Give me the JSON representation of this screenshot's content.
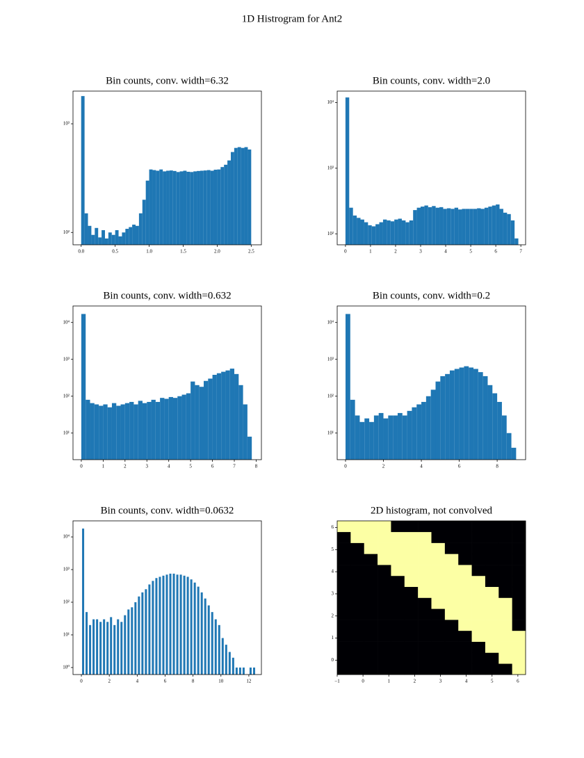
{
  "title": "1D Histrogram for Ant2",
  "chart_data": [
    {
      "type": "histogram",
      "title": "Bin counts, conv. width=6.32",
      "color": "#1f77b4",
      "log_y": true,
      "bins": [
        0,
        0.05,
        0.1,
        0.15,
        0.2,
        0.25,
        0.3,
        0.35,
        0.4,
        0.45,
        0.5,
        0.55,
        0.6,
        0.65,
        0.7,
        0.75,
        0.8,
        0.85,
        0.9,
        0.95,
        1.0,
        1.05,
        1.1,
        1.15,
        1.2,
        1.25,
        1.3,
        1.35,
        1.4,
        1.45,
        1.5,
        1.55,
        1.6,
        1.65,
        1.7,
        1.75,
        1.8,
        1.85,
        1.9,
        1.95,
        2.0,
        2.05,
        2.1,
        2.15,
        2.2,
        2.25,
        2.3,
        2.35,
        2.4,
        2.45,
        2.5
      ],
      "values": [
        1800,
        150,
        115,
        95,
        110,
        90,
        105,
        88,
        100,
        95,
        105,
        92,
        100,
        108,
        112,
        118,
        115,
        150,
        200,
        300,
        380,
        375,
        370,
        380,
        365,
        370,
        372,
        368,
        360,
        365,
        370,
        362,
        360,
        365,
        368,
        370,
        372,
        375,
        370,
        378,
        380,
        400,
        420,
        460,
        550,
        600,
        610,
        600,
        610,
        580
      ],
      "xlim": [
        -0.12,
        2.65
      ],
      "ylim": [
        77,
        2000
      ],
      "xticks": [
        {
          "value": 0,
          "label": "0.0"
        },
        0.5,
        {
          "value": 1,
          "label": "1.0"
        },
        1.5,
        {
          "value": 2,
          "label": "2.0"
        },
        2.5
      ],
      "yticks": [
        {
          "value": 100,
          "label": "10²"
        },
        {
          "value": 1000,
          "label": "10³"
        }
      ]
    },
    {
      "type": "histogram",
      "title": "Bin counts, conv. width=2.0",
      "color": "#1f77b4",
      "log_y": true,
      "bins": [
        0,
        0.15,
        0.3,
        0.45,
        0.6,
        0.75,
        0.9,
        1.05,
        1.2,
        1.35,
        1.5,
        1.65,
        1.8,
        1.95,
        2.1,
        2.25,
        2.4,
        2.55,
        2.7,
        2.85,
        3.0,
        3.15,
        3.3,
        3.45,
        3.6,
        3.75,
        3.9,
        4.05,
        4.2,
        4.35,
        4.5,
        4.65,
        4.8,
        4.95,
        5.1,
        5.25,
        5.4,
        5.55,
        5.7,
        5.85,
        6.0,
        6.15,
        6.3,
        6.45,
        6.6,
        6.75,
        6.9
      ],
      "values": [
        12000,
        250,
        190,
        175,
        165,
        150,
        135,
        130,
        140,
        150,
        165,
        160,
        155,
        165,
        170,
        160,
        150,
        160,
        230,
        250,
        260,
        270,
        255,
        265,
        250,
        255,
        240,
        245,
        240,
        250,
        235,
        240,
        240,
        240,
        240,
        245,
        240,
        250,
        260,
        270,
        280,
        240,
        210,
        200,
        160,
        85
      ],
      "xlim": [
        -0.33,
        7.19
      ],
      "ylim": [
        68,
        15000
      ],
      "xticks": [
        0,
        1,
        2,
        3,
        4,
        5,
        6,
        7
      ],
      "yticks": [
        {
          "value": 100,
          "label": "10²"
        },
        {
          "value": 1000,
          "label": "10³"
        },
        {
          "value": 10000,
          "label": "10⁴"
        }
      ]
    },
    {
      "type": "histogram",
      "title": "Bin counts, conv. width=0.632",
      "color": "#1f77b4",
      "log_y": true,
      "bins": [
        0,
        0.2,
        0.4,
        0.6,
        0.8,
        1.0,
        1.2,
        1.4,
        1.6,
        1.8,
        2.0,
        2.2,
        2.4,
        2.6,
        2.8,
        3.0,
        3.2,
        3.4,
        3.6,
        3.8,
        4.0,
        4.2,
        4.4,
        4.6,
        4.8,
        5.0,
        5.2,
        5.4,
        5.6,
        5.8,
        6.0,
        6.2,
        6.4,
        6.6,
        6.8,
        7.0,
        7.2,
        7.4,
        7.6,
        7.8
      ],
      "values": [
        17000,
        80,
        65,
        60,
        55,
        60,
        50,
        65,
        55,
        60,
        65,
        70,
        60,
        75,
        65,
        70,
        80,
        70,
        90,
        85,
        95,
        90,
        100,
        110,
        120,
        250,
        200,
        180,
        260,
        300,
        380,
        420,
        460,
        500,
        560,
        400,
        200,
        60,
        8
      ],
      "xlim": [
        -0.38,
        8.24
      ],
      "ylim": [
        1.9,
        28000
      ],
      "xticks": [
        0,
        1,
        2,
        3,
        4,
        5,
        6,
        7,
        8
      ],
      "yticks": [
        {
          "value": 10,
          "label": "10¹"
        },
        {
          "value": 100,
          "label": "10²"
        },
        {
          "value": 1000,
          "label": "10³"
        },
        {
          "value": 10000,
          "label": "10⁴"
        }
      ]
    },
    {
      "type": "histogram",
      "title": "Bin counts, conv. width=0.2",
      "color": "#1f77b4",
      "log_y": true,
      "bins": [
        0,
        0.25,
        0.5,
        0.75,
        1.0,
        1.25,
        1.5,
        1.75,
        2.0,
        2.25,
        2.5,
        2.75,
        3.0,
        3.25,
        3.5,
        3.75,
        4.0,
        4.25,
        4.5,
        4.75,
        5.0,
        5.25,
        5.5,
        5.75,
        6.0,
        6.25,
        6.5,
        6.75,
        7.0,
        7.25,
        7.5,
        7.75,
        8.0,
        8.25,
        8.5,
        8.75,
        9.0
      ],
      "values": [
        17000,
        80,
        30,
        20,
        25,
        20,
        30,
        35,
        25,
        30,
        30,
        35,
        30,
        40,
        50,
        60,
        70,
        100,
        150,
        250,
        350,
        400,
        500,
        550,
        600,
        650,
        600,
        550,
        450,
        350,
        200,
        120,
        70,
        30,
        10,
        4
      ],
      "xlim": [
        -0.44,
        9.5
      ],
      "ylim": [
        1.9,
        28000
      ],
      "xticks": [
        0,
        2,
        4,
        6,
        8
      ],
      "yticks": [
        {
          "value": 10,
          "label": "10¹"
        },
        {
          "value": 100,
          "label": "10²"
        },
        {
          "value": 1000,
          "label": "10³"
        },
        {
          "value": 10000,
          "label": "10⁴"
        }
      ]
    },
    {
      "type": "histogram",
      "title": "Bin counts, conv. width=0.0632",
      "color": "#1f77b4",
      "log_y": true,
      "rwidth": 0.6,
      "bins": [
        0,
        0.25,
        0.5,
        0.75,
        1.0,
        1.25,
        1.5,
        1.75,
        2.0,
        2.25,
        2.5,
        2.75,
        3.0,
        3.25,
        3.5,
        3.75,
        4.0,
        4.25,
        4.5,
        4.75,
        5.0,
        5.25,
        5.5,
        5.75,
        6.0,
        6.25,
        6.5,
        6.75,
        7.0,
        7.25,
        7.5,
        7.75,
        8.0,
        8.25,
        8.5,
        8.75,
        9.0,
        9.25,
        9.5,
        9.75,
        10.0,
        10.25,
        10.5,
        10.75,
        11.0,
        11.25,
        11.5,
        11.75,
        12.0,
        12.25,
        12.5
      ],
      "values": [
        18000,
        50,
        20,
        30,
        30,
        25,
        30,
        25,
        35,
        20,
        30,
        25,
        40,
        60,
        70,
        100,
        150,
        200,
        250,
        350,
        450,
        550,
        600,
        650,
        700,
        750,
        750,
        700,
        700,
        650,
        600,
        500,
        400,
        300,
        200,
        130,
        80,
        50,
        30,
        20,
        8,
        5,
        3,
        2,
        1,
        1,
        1,
        0,
        1,
        1
      ],
      "xlim": [
        -0.6,
        12.9
      ],
      "ylim": [
        0.61,
        31000
      ],
      "xticks": [
        0,
        2,
        4,
        6,
        8,
        10,
        12
      ],
      "yticks": [
        {
          "value": 1,
          "label": "10⁰"
        },
        {
          "value": 10,
          "label": "10¹"
        },
        {
          "value": 100,
          "label": "10²"
        },
        {
          "value": 1000,
          "label": "10³"
        },
        {
          "value": 10000,
          "label": "10⁴"
        }
      ]
    },
    {
      "type": "heatmap",
      "title": "2D histogram, not convolved",
      "colors": [
        "#000004",
        "#fcffa4"
      ],
      "z": [
        [
          0,
          0,
          0,
          0,
          0,
          0,
          0,
          0,
          0,
          0,
          0,
          0,
          0,
          1
        ],
        [
          0,
          0,
          0,
          0,
          0,
          0,
          0,
          0,
          0,
          0,
          0,
          0,
          1,
          1
        ],
        [
          0,
          0,
          0,
          0,
          0,
          0,
          0,
          0,
          0,
          0,
          0,
          1,
          1,
          1
        ],
        [
          0,
          0,
          0,
          0,
          0,
          0,
          0,
          0,
          0,
          0,
          1,
          1,
          1,
          1
        ],
        [
          0,
          0,
          0,
          0,
          0,
          0,
          0,
          0,
          0,
          1,
          1,
          1,
          1,
          0
        ],
        [
          0,
          0,
          0,
          0,
          0,
          0,
          0,
          0,
          1,
          1,
          1,
          1,
          1,
          0
        ],
        [
          0,
          0,
          0,
          0,
          0,
          0,
          0,
          1,
          1,
          1,
          1,
          1,
          1,
          0
        ],
        [
          0,
          0,
          0,
          0,
          0,
          0,
          1,
          1,
          1,
          1,
          1,
          1,
          0,
          0
        ],
        [
          0,
          0,
          0,
          0,
          0,
          1,
          1,
          1,
          1,
          1,
          1,
          0,
          0,
          0
        ],
        [
          0,
          0,
          0,
          0,
          1,
          1,
          1,
          1,
          1,
          1,
          0,
          0,
          0,
          0
        ],
        [
          0,
          0,
          0,
          1,
          1,
          1,
          1,
          1,
          1,
          0,
          0,
          0,
          0,
          0
        ],
        [
          0,
          0,
          1,
          1,
          1,
          1,
          1,
          1,
          0,
          0,
          0,
          0,
          0,
          0
        ],
        [
          0,
          1,
          1,
          1,
          1,
          1,
          1,
          0,
          0,
          0,
          0,
          0,
          0,
          0
        ],
        [
          1,
          1,
          1,
          1,
          0,
          0,
          0,
          0,
          0,
          0,
          0,
          0,
          0,
          0
        ]
      ],
      "xlim": [
        -1,
        6.3
      ],
      "ylim": [
        -0.65,
        6.3
      ],
      "xticks": [
        {
          "value": -1,
          "label": "−1"
        },
        0,
        1,
        2,
        3,
        4,
        5,
        6
      ],
      "yticks": [
        0,
        1,
        2,
        3,
        4,
        5,
        6
      ]
    }
  ]
}
